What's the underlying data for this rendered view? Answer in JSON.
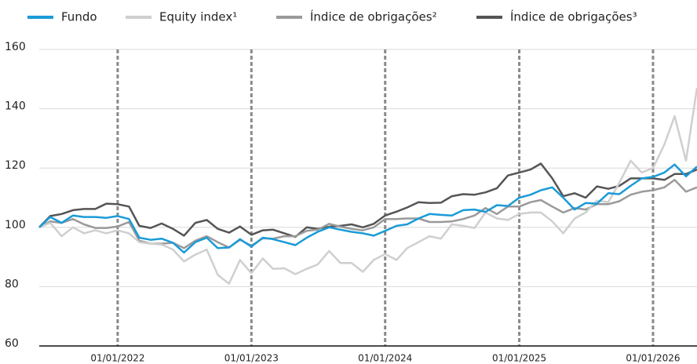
{
  "chart_data": {
    "type": "line",
    "x": [
      "01/06/2021",
      "01/07/2021",
      "01/08/2021",
      "01/09/2021",
      "01/10/2021",
      "01/11/2021",
      "01/12/2021",
      "01/01/2022",
      "01/02/2022",
      "01/03/2022",
      "01/04/2022",
      "01/05/2022",
      "01/06/2022",
      "01/07/2022",
      "01/08/2022",
      "01/09/2022",
      "01/10/2022",
      "01/11/2022",
      "01/12/2022",
      "01/01/2023",
      "01/02/2023",
      "01/03/2023",
      "01/04/2023",
      "01/05/2023",
      "01/06/2023",
      "01/07/2023",
      "01/08/2023",
      "01/09/2023",
      "01/10/2023",
      "01/11/2023",
      "01/12/2023",
      "01/01/2024",
      "01/02/2024",
      "01/03/2024",
      "01/04/2024",
      "01/05/2024",
      "01/06/2024",
      "01/07/2024",
      "01/08/2024",
      "01/09/2024",
      "01/10/2024",
      "01/11/2024",
      "01/12/2024",
      "01/01/2025",
      "01/02/2025",
      "01/03/2025",
      "01/04/2025",
      "01/05/2025",
      "01/06/2025",
      "01/07/2025",
      "01/08/2025",
      "01/09/2025",
      "01/10/2025",
      "01/11/2025",
      "01/12/2025",
      "01/01/2026",
      "01/02/2026",
      "01/03/2026",
      "01/04/2026",
      "01/05/2026"
    ],
    "series": [
      {
        "name": "Fundo",
        "color": "#1a9bd7",
        "values": [
          100,
          103.5,
          101.5,
          104,
          103.5,
          103.5,
          103.2,
          103.8,
          102.8,
          96.5,
          95.8,
          96.2,
          94.8,
          91.5,
          95,
          96.5,
          93,
          93.2,
          96,
          93.5,
          96.5,
          96,
          95,
          94,
          96.5,
          98.5,
          100,
          99.2,
          98.5,
          98,
          97.2,
          98.8,
          100.5,
          101,
          103,
          104.5,
          104.2,
          104,
          105.8,
          106,
          105.2,
          107.5,
          107.2,
          110,
          111,
          112.5,
          113.5,
          110,
          106,
          108.2,
          108,
          111.5,
          111.2,
          114,
          116.5,
          117,
          118.5,
          121.2,
          117.2,
          120.5
        ]
      },
      {
        "name": "Equity index¹",
        "color": "#cfcfcf",
        "values": [
          100,
          101.5,
          97,
          100,
          98,
          99,
          98,
          99,
          98,
          95,
          94.5,
          94.2,
          92.5,
          88.5,
          90.8,
          92.5,
          84,
          81,
          89,
          84.5,
          89.5,
          86,
          86.2,
          84.2,
          86,
          87.5,
          92,
          88,
          88,
          85,
          89,
          91,
          89,
          93,
          95,
          97,
          96.2,
          101,
          100.5,
          99.8,
          105,
          103,
          102.5,
          104.5,
          105,
          105,
          102,
          98,
          103,
          105,
          109,
          108.5,
          115,
          122.5,
          118.5,
          120,
          128,
          137.5,
          122.5,
          147
        ]
      },
      {
        "name": "Índice de obrigações²",
        "color": "#9a9a9a",
        "values": [
          100,
          102,
          101.5,
          102.8,
          101,
          99.8,
          99.8,
          100.3,
          101.8,
          95.5,
          94.5,
          94.5,
          94.8,
          93,
          95.5,
          97,
          95,
          93.2,
          95.8,
          93.8,
          96.3,
          96.2,
          97,
          97,
          98.8,
          99.2,
          101.2,
          100.2,
          99.5,
          99,
          100,
          102.8,
          102.8,
          103,
          103,
          101.8,
          101.8,
          102,
          102.8,
          104,
          106.5,
          104.5,
          107,
          107,
          108.5,
          109.2,
          107,
          105,
          106.5,
          106,
          107.8,
          107.8,
          108.8,
          111,
          112,
          112.5,
          113.5,
          116,
          112,
          113.5
        ]
      },
      {
        "name": "Índice de obrigações³",
        "color": "#555555",
        "values": [
          100,
          103.8,
          104.5,
          105.8,
          106.2,
          106.2,
          108,
          107.8,
          107,
          100.5,
          99.8,
          101.3,
          99.5,
          97.2,
          101.5,
          102.5,
          99.5,
          98.2,
          100.3,
          97.5,
          99,
          99.2,
          98,
          96.8,
          100,
          99.5,
          100.2,
          100.5,
          101,
          100,
          101.2,
          104,
          105.3,
          106.7,
          108.5,
          108.2,
          108.3,
          110.5,
          111.2,
          111,
          111.8,
          113.2,
          117.5,
          118.5,
          119.5,
          121.5,
          116.5,
          110.5,
          111.5,
          110,
          113.8,
          113,
          114,
          116.5,
          116.5,
          116.5,
          116,
          118,
          118,
          119.5
        ]
      }
    ],
    "xlim": [
      "01/06/2021",
      "01/05/2026"
    ],
    "xticks": [
      "01/01/2022",
      "01/01/2023",
      "01/01/2024",
      "01/01/2025",
      "01/01/2026"
    ],
    "ylim": [
      60,
      160
    ],
    "yticks": [
      60,
      80,
      100,
      120,
      140,
      160
    ],
    "grid": true
  }
}
